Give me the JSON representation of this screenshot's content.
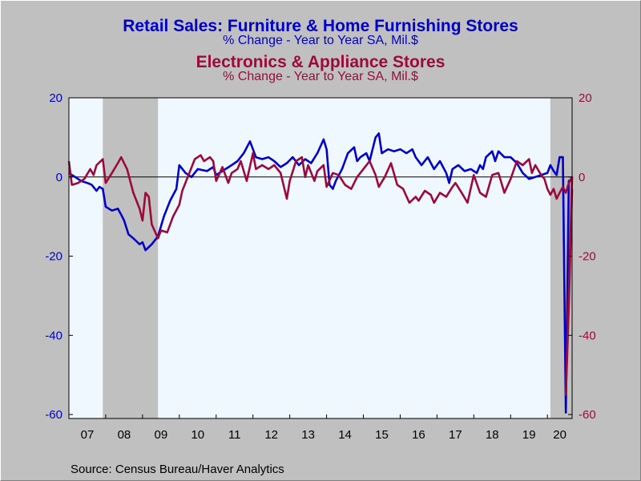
{
  "chart_data": {
    "type": "line",
    "title": "Retail Sales: Furniture & Home Furnishing Stores",
    "subtitle": "% Change - Year to Year   SA, Mil.$",
    "title2": "Electronics & Appliance Stores",
    "subtitle2": "% Change - Year to Year   SA, Mil.$",
    "source": "Source:  Census Bureau/Haver Analytics",
    "ylim": [
      -61,
      20
    ],
    "y_ticks": [
      "20",
      "0",
      "-20",
      "-40",
      "-60"
    ],
    "y_tick_values": [
      20,
      0,
      -20,
      -40,
      -60
    ],
    "x_tick_labels": [
      "07",
      "08",
      "09",
      "10",
      "11",
      "12",
      "13",
      "14",
      "15",
      "16",
      "17",
      "18",
      "19",
      "20"
    ],
    "x_start": 2007.0,
    "x_end": 2020.67,
    "recessions": [
      [
        2007.92,
        2009.42
      ],
      [
        2020.08,
        2020.67
      ]
    ],
    "zero_line": true,
    "colors": {
      "series1": "#0000c8",
      "series2": "#9b0a3c",
      "axis_left": "#0000c8",
      "axis_right": "#9b0a3c",
      "recession": "#c0c0c0",
      "plot_bg": "#f0f8ff"
    },
    "series": [
      {
        "color": "#0000c8",
        "points": [
          [
            2007.0,
            1
          ],
          [
            2007.17,
            0
          ],
          [
            2007.33,
            -1
          ],
          [
            2007.5,
            -1.5
          ],
          [
            2007.62,
            -2
          ],
          [
            2007.75,
            -3.5
          ],
          [
            2007.83,
            -2.5
          ],
          [
            2007.92,
            -3
          ],
          [
            2008.0,
            -7.5
          ],
          [
            2008.17,
            -8.5
          ],
          [
            2008.33,
            -8
          ],
          [
            2008.42,
            -9.5
          ],
          [
            2008.5,
            -11
          ],
          [
            2008.62,
            -14.5
          ],
          [
            2008.75,
            -15.5
          ],
          [
            2008.92,
            -17
          ],
          [
            2009.0,
            -16.5
          ],
          [
            2009.08,
            -18.5
          ],
          [
            2009.25,
            -17
          ],
          [
            2009.42,
            -15
          ],
          [
            2009.58,
            -10
          ],
          [
            2009.75,
            -6
          ],
          [
            2009.92,
            -3
          ],
          [
            2010.0,
            3
          ],
          [
            2010.17,
            1
          ],
          [
            2010.33,
            0
          ],
          [
            2010.5,
            2
          ],
          [
            2010.75,
            1.5
          ],
          [
            2010.92,
            2.5
          ],
          [
            2011.0,
            0.5
          ],
          [
            2011.17,
            1.5
          ],
          [
            2011.42,
            3
          ],
          [
            2011.58,
            4
          ],
          [
            2011.75,
            6
          ],
          [
            2011.92,
            9
          ],
          [
            2012.08,
            5
          ],
          [
            2012.25,
            4.5
          ],
          [
            2012.42,
            5
          ],
          [
            2012.58,
            4
          ],
          [
            2012.75,
            2.5
          ],
          [
            2012.92,
            3.5
          ],
          [
            2013.08,
            5
          ],
          [
            2013.25,
            3
          ],
          [
            2013.42,
            4.5
          ],
          [
            2013.58,
            3.5
          ],
          [
            2013.75,
            6
          ],
          [
            2013.92,
            9.5
          ],
          [
            2014.0,
            7
          ],
          [
            2014.08,
            -2
          ],
          [
            2014.17,
            -3
          ],
          [
            2014.25,
            -1
          ],
          [
            2014.42,
            2
          ],
          [
            2014.58,
            6
          ],
          [
            2014.75,
            7.5
          ],
          [
            2014.83,
            4
          ],
          [
            2014.92,
            5
          ],
          [
            2015.08,
            6
          ],
          [
            2015.17,
            4
          ],
          [
            2015.33,
            10
          ],
          [
            2015.42,
            11
          ],
          [
            2015.5,
            6
          ],
          [
            2015.67,
            7
          ],
          [
            2015.83,
            6.5
          ],
          [
            2016.0,
            7
          ],
          [
            2016.17,
            6
          ],
          [
            2016.33,
            7
          ],
          [
            2016.42,
            5
          ],
          [
            2016.58,
            3
          ],
          [
            2016.75,
            5
          ],
          [
            2016.92,
            2
          ],
          [
            2017.08,
            4
          ],
          [
            2017.25,
            1
          ],
          [
            2017.33,
            -1.5
          ],
          [
            2017.42,
            2
          ],
          [
            2017.58,
            3
          ],
          [
            2017.75,
            1.5
          ],
          [
            2017.92,
            2
          ],
          [
            2018.08,
            1
          ],
          [
            2018.17,
            3
          ],
          [
            2018.25,
            2
          ],
          [
            2018.33,
            5
          ],
          [
            2018.5,
            6.5
          ],
          [
            2018.58,
            4
          ],
          [
            2018.67,
            6.5
          ],
          [
            2018.83,
            5
          ],
          [
            2019.0,
            5
          ],
          [
            2019.17,
            3.5
          ],
          [
            2019.33,
            1
          ],
          [
            2019.5,
            -0.5
          ],
          [
            2019.67,
            0
          ],
          [
            2019.83,
            0.5
          ],
          [
            2020.0,
            1
          ],
          [
            2020.08,
            3
          ],
          [
            2020.17,
            1.5
          ],
          [
            2020.25,
            0.5
          ],
          [
            2020.33,
            5
          ],
          [
            2020.42,
            5
          ],
          [
            2020.5,
            -59.5
          ],
          [
            2020.58,
            -1
          ],
          [
            2020.67,
            -0.5
          ]
        ]
      },
      {
        "color": "#9b0a3c",
        "points": [
          [
            2007.0,
            4
          ],
          [
            2007.08,
            -2
          ],
          [
            2007.25,
            -1.5
          ],
          [
            2007.42,
            -0.5
          ],
          [
            2007.58,
            2
          ],
          [
            2007.67,
            0.5
          ],
          [
            2007.75,
            3
          ],
          [
            2007.92,
            4.5
          ],
          [
            2008.0,
            -1.5
          ],
          [
            2008.17,
            1
          ],
          [
            2008.33,
            3.5
          ],
          [
            2008.42,
            5
          ],
          [
            2008.58,
            2
          ],
          [
            2008.75,
            -4
          ],
          [
            2008.92,
            -8
          ],
          [
            2009.0,
            -11
          ],
          [
            2009.08,
            -4
          ],
          [
            2009.17,
            -5
          ],
          [
            2009.25,
            -12
          ],
          [
            2009.42,
            -15.5
          ],
          [
            2009.5,
            -13.5
          ],
          [
            2009.67,
            -14
          ],
          [
            2009.83,
            -10
          ],
          [
            2010.0,
            -7
          ],
          [
            2010.08,
            -3.5
          ],
          [
            2010.25,
            0.5
          ],
          [
            2010.42,
            4.5
          ],
          [
            2010.58,
            5.5
          ],
          [
            2010.67,
            4
          ],
          [
            2010.83,
            5
          ],
          [
            2010.92,
            4
          ],
          [
            2011.0,
            -1
          ],
          [
            2011.17,
            2.5
          ],
          [
            2011.33,
            -1.5
          ],
          [
            2011.42,
            1
          ],
          [
            2011.58,
            2
          ],
          [
            2011.67,
            4
          ],
          [
            2011.83,
            -1
          ],
          [
            2012.0,
            6
          ],
          [
            2012.08,
            2
          ],
          [
            2012.25,
            3
          ],
          [
            2012.42,
            2
          ],
          [
            2012.58,
            3
          ],
          [
            2012.75,
            1
          ],
          [
            2012.92,
            -5.5
          ],
          [
            2013.0,
            -1
          ],
          [
            2013.17,
            4
          ],
          [
            2013.33,
            5
          ],
          [
            2013.42,
            0
          ],
          [
            2013.5,
            3
          ],
          [
            2013.67,
            -1
          ],
          [
            2013.75,
            1.5
          ],
          [
            2013.92,
            3
          ],
          [
            2014.0,
            -2.5
          ],
          [
            2014.17,
            1
          ],
          [
            2014.33,
            0.5
          ],
          [
            2014.5,
            -2
          ],
          [
            2014.67,
            -3
          ],
          [
            2014.83,
            0
          ],
          [
            2015.0,
            2
          ],
          [
            2015.17,
            4
          ],
          [
            2015.33,
            0.5
          ],
          [
            2015.42,
            -2.5
          ],
          [
            2015.58,
            0
          ],
          [
            2015.75,
            3.5
          ],
          [
            2015.92,
            -2
          ],
          [
            2016.08,
            -3
          ],
          [
            2016.25,
            -6.5
          ],
          [
            2016.42,
            -5
          ],
          [
            2016.5,
            -6
          ],
          [
            2016.67,
            -3.5
          ],
          [
            2016.83,
            -4.5
          ],
          [
            2016.92,
            -6.5
          ],
          [
            2017.08,
            -4
          ],
          [
            2017.25,
            -5
          ],
          [
            2017.42,
            -2.5
          ],
          [
            2017.5,
            -1.5
          ],
          [
            2017.67,
            -4
          ],
          [
            2017.83,
            -6.5
          ],
          [
            2018.0,
            0.5
          ],
          [
            2018.17,
            -4
          ],
          [
            2018.33,
            -5
          ],
          [
            2018.5,
            0.5
          ],
          [
            2018.67,
            1
          ],
          [
            2018.83,
            -4
          ],
          [
            2019.0,
            -0.5
          ],
          [
            2019.17,
            4
          ],
          [
            2019.33,
            3
          ],
          [
            2019.5,
            4.5
          ],
          [
            2019.58,
            1
          ],
          [
            2019.67,
            3
          ],
          [
            2019.83,
            0.5
          ],
          [
            2019.92,
            -0.5
          ],
          [
            2020.0,
            -3
          ],
          [
            2020.08,
            -4.5
          ],
          [
            2020.17,
            -3
          ],
          [
            2020.25,
            -5.5
          ],
          [
            2020.33,
            -4
          ],
          [
            2020.42,
            -2.5
          ],
          [
            2020.5,
            -4
          ],
          [
            2020.58,
            -1.5
          ],
          [
            2020.67,
            0
          ],
          [
            2020.5,
            -55
          ],
          [
            2020.58,
            -33
          ],
          [
            2020.67,
            -3
          ]
        ]
      }
    ]
  }
}
